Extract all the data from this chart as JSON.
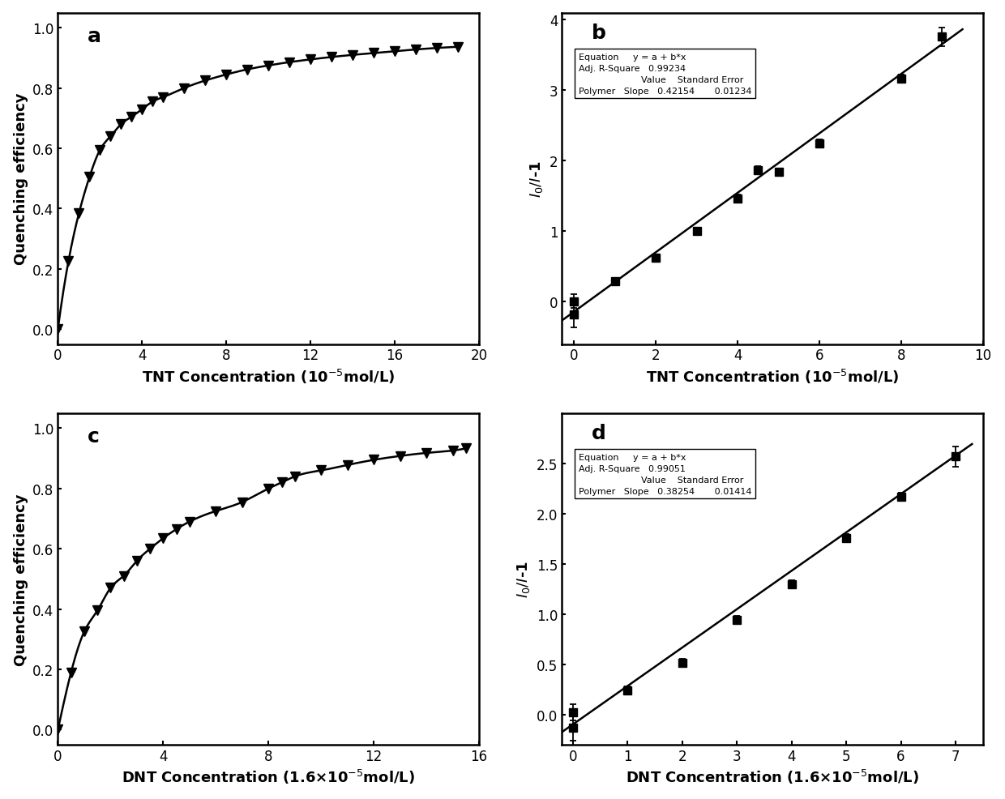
{
  "panel_a": {
    "label": "a",
    "x": [
      0,
      0.5,
      1.0,
      1.5,
      2.0,
      2.5,
      3.0,
      3.5,
      4.0,
      4.5,
      5.0,
      6.0,
      7.0,
      8.0,
      9.0,
      10.0,
      11.0,
      12.0,
      13.0,
      14.0,
      15.0,
      16.0,
      17.0,
      18.0,
      19.0
    ],
    "y": [
      0.0,
      0.225,
      0.385,
      0.505,
      0.595,
      0.64,
      0.68,
      0.705,
      0.73,
      0.755,
      0.77,
      0.8,
      0.825,
      0.845,
      0.862,
      0.875,
      0.886,
      0.895,
      0.903,
      0.91,
      0.916,
      0.922,
      0.928,
      0.933,
      0.937
    ],
    "xlabel": "TNT Concentration (10$^{-5}$mol/L)",
    "ylabel": "Quenching efficiency",
    "xlim": [
      0,
      20
    ],
    "ylim": [
      -0.05,
      1.05
    ],
    "xticks": [
      0,
      4,
      8,
      12,
      16,
      20
    ],
    "yticks": [
      0.0,
      0.2,
      0.4,
      0.6,
      0.8,
      1.0
    ]
  },
  "panel_b": {
    "label": "b",
    "x_data": [
      0,
      0,
      1.0,
      2.0,
      3.0,
      4.0,
      4.5,
      5.0,
      6.0,
      8.0,
      9.0
    ],
    "y_data": [
      0.01,
      -0.18,
      0.29,
      0.62,
      1.0,
      1.47,
      1.87,
      1.84,
      2.25,
      3.17,
      3.76
    ],
    "y_err": [
      0.1,
      0.18,
      0.05,
      0.05,
      0.05,
      0.05,
      0.05,
      0.05,
      0.05,
      0.05,
      0.13
    ],
    "x_fit_start": -0.5,
    "x_fit_end": 9.5,
    "slope": 0.42154,
    "intercept": -0.14,
    "xlabel": "TNT Concentration (10$^{-5}$mol/L)",
    "ylabel": "$\\mathit{I}_0/\\mathit{I}$-1",
    "xlim": [
      -0.3,
      10
    ],
    "ylim": [
      -0.6,
      4.1
    ],
    "xticks": [
      0,
      2,
      4,
      6,
      8,
      10
    ],
    "yticks": [
      0,
      1,
      2,
      3,
      4
    ],
    "equation": "y = a + b*x",
    "r_square": "0.99234",
    "value": "0.42154",
    "std_error": "0.01234"
  },
  "panel_c": {
    "label": "c",
    "x": [
      0,
      0.5,
      1.0,
      1.5,
      2.0,
      2.5,
      3.0,
      3.5,
      4.0,
      4.5,
      5.0,
      6.0,
      7.0,
      8.0,
      8.5,
      9.0,
      10.0,
      11.0,
      12.0,
      13.0,
      14.0,
      15.0,
      15.5
    ],
    "y": [
      0.0,
      0.19,
      0.325,
      0.395,
      0.47,
      0.51,
      0.56,
      0.6,
      0.635,
      0.665,
      0.69,
      0.725,
      0.755,
      0.8,
      0.82,
      0.84,
      0.86,
      0.878,
      0.895,
      0.908,
      0.918,
      0.926,
      0.933
    ],
    "xlabel": "DNT Concentration (1.6×10$^{-5}$mol/L)",
    "ylabel": "Quenching efficiency",
    "xlim": [
      0,
      16
    ],
    "ylim": [
      -0.05,
      1.05
    ],
    "xticks": [
      0,
      4,
      8,
      12,
      16
    ],
    "yticks": [
      0.0,
      0.2,
      0.4,
      0.6,
      0.8,
      1.0
    ]
  },
  "panel_d": {
    "label": "d",
    "x_data": [
      0,
      0,
      1.0,
      2.0,
      3.0,
      4.0,
      5.0,
      6.0,
      7.0
    ],
    "y_data": [
      0.02,
      -0.13,
      0.24,
      0.51,
      0.94,
      1.3,
      1.76,
      2.17,
      2.57
    ],
    "y_err": [
      0.08,
      0.13,
      0.04,
      0.04,
      0.04,
      0.04,
      0.04,
      0.04,
      0.1
    ],
    "x_fit_start": -0.5,
    "x_fit_end": 7.3,
    "slope": 0.38254,
    "intercept": -0.1,
    "xlabel": "DNT Concentration (1.6×10$^{-5}$mol/L)",
    "ylabel": "$\\mathit{I}_0/\\mathit{I}$-1",
    "xlim": [
      -0.2,
      7.5
    ],
    "ylim": [
      -0.3,
      3.0
    ],
    "xticks": [
      0,
      1,
      2,
      3,
      4,
      5,
      6,
      7
    ],
    "yticks": [
      0.0,
      0.5,
      1.0,
      1.5,
      2.0,
      2.5
    ],
    "equation": "y = a + b*x",
    "r_square": "0.99051",
    "value": "0.38254",
    "std_error": "0.01414"
  },
  "background_color": "#ffffff",
  "line_color": "#000000",
  "marker_color": "#000000",
  "marker_size": 8,
  "linewidth": 1.8,
  "label_fontsize": 13,
  "tick_fontsize": 12,
  "panel_label_fontsize": 18
}
